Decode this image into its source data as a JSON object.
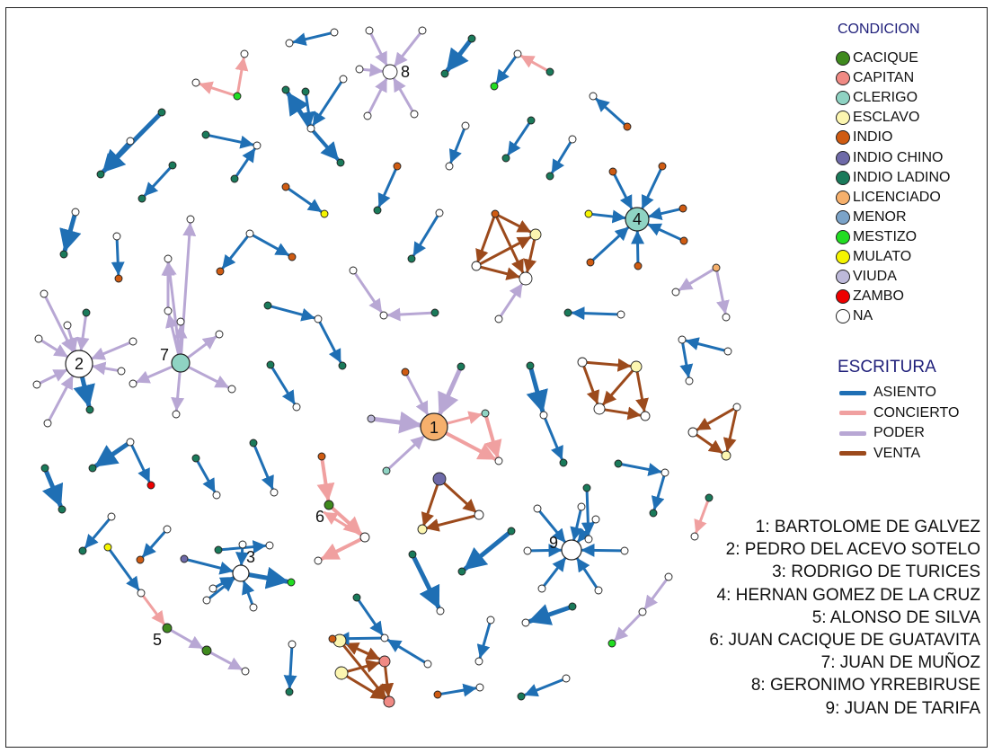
{
  "legend_condicion": {
    "title": "CONDICION",
    "items": [
      {
        "label": "CACIQUE",
        "color": "#3f8a1e"
      },
      {
        "label": "CAPITAN",
        "color": "#f08a84"
      },
      {
        "label": "CLERIGO",
        "color": "#8fd3c3"
      },
      {
        "label": "ESCLAVO",
        "color": "#fcf6b0"
      },
      {
        "label": "INDIO",
        "color": "#cf5b12"
      },
      {
        "label": "INDIO CHINO",
        "color": "#6e6aa8"
      },
      {
        "label": "INDIO LADINO",
        "color": "#1a7a5a"
      },
      {
        "label": "LICENCIADO",
        "color": "#f6b06c"
      },
      {
        "label": "MENOR",
        "color": "#7ba3c8"
      },
      {
        "label": "MESTIZO",
        "color": "#22dd22"
      },
      {
        "label": "MULATO",
        "color": "#f5f500"
      },
      {
        "label": "VIUDA",
        "color": "#bdb9d9"
      },
      {
        "label": "ZAMBO",
        "color": "#ee0000"
      },
      {
        "label": "NA",
        "color": "#ffffff"
      }
    ]
  },
  "legend_escritura": {
    "title": "ESCRITURA",
    "items": [
      {
        "label": "ASIENTO",
        "color": "#1f6fb4"
      },
      {
        "label": "CONCIERTO",
        "color": "#f0a0a0"
      },
      {
        "label": "PODER",
        "color": "#b8a7d4"
      },
      {
        "label": "VENTA",
        "color": "#9c4a1c"
      }
    ]
  },
  "key_people": [
    "1: BARTOLOME DE GALVEZ",
    "2: PEDRO DEL ACEVO SOTELO",
    "3: RODRIGO DE TURICES",
    "4: HERNAN GOMEZ DE LA CRUZ",
    "5: ALONSO DE SILVA",
    "6: JUAN CACIQUE DE GUATAVITA",
    "7: JUAN DE MUÑOZ",
    "8: GERONIMO YRREBIRUSE",
    "9: JUAN DE TARIFA"
  ],
  "hub_labels": {
    "h1": "1",
    "h2": "2",
    "h3": "3",
    "h4": "4",
    "h5": "5",
    "h6": "6",
    "h7": "7",
    "h8": "8",
    "h9": "9"
  },
  "network": {
    "nodes": [
      {
        "id": "h1",
        "cond": "LICENCIADO",
        "label": "1"
      },
      {
        "id": "h2",
        "cond": "NA",
        "label": "2"
      },
      {
        "id": "h3",
        "cond": "NA",
        "label": "3"
      },
      {
        "id": "h4",
        "cond": "CLERIGO",
        "label": "4"
      },
      {
        "id": "h5",
        "cond": "CACIQUE",
        "label": "5"
      },
      {
        "id": "h6",
        "cond": "CACIQUE",
        "label": "6"
      },
      {
        "id": "h7",
        "cond": "CLERIGO",
        "label": "7"
      },
      {
        "id": "h8",
        "cond": "NA",
        "label": "8"
      },
      {
        "id": "h9",
        "cond": "NA",
        "label": "9"
      }
    ]
  }
}
